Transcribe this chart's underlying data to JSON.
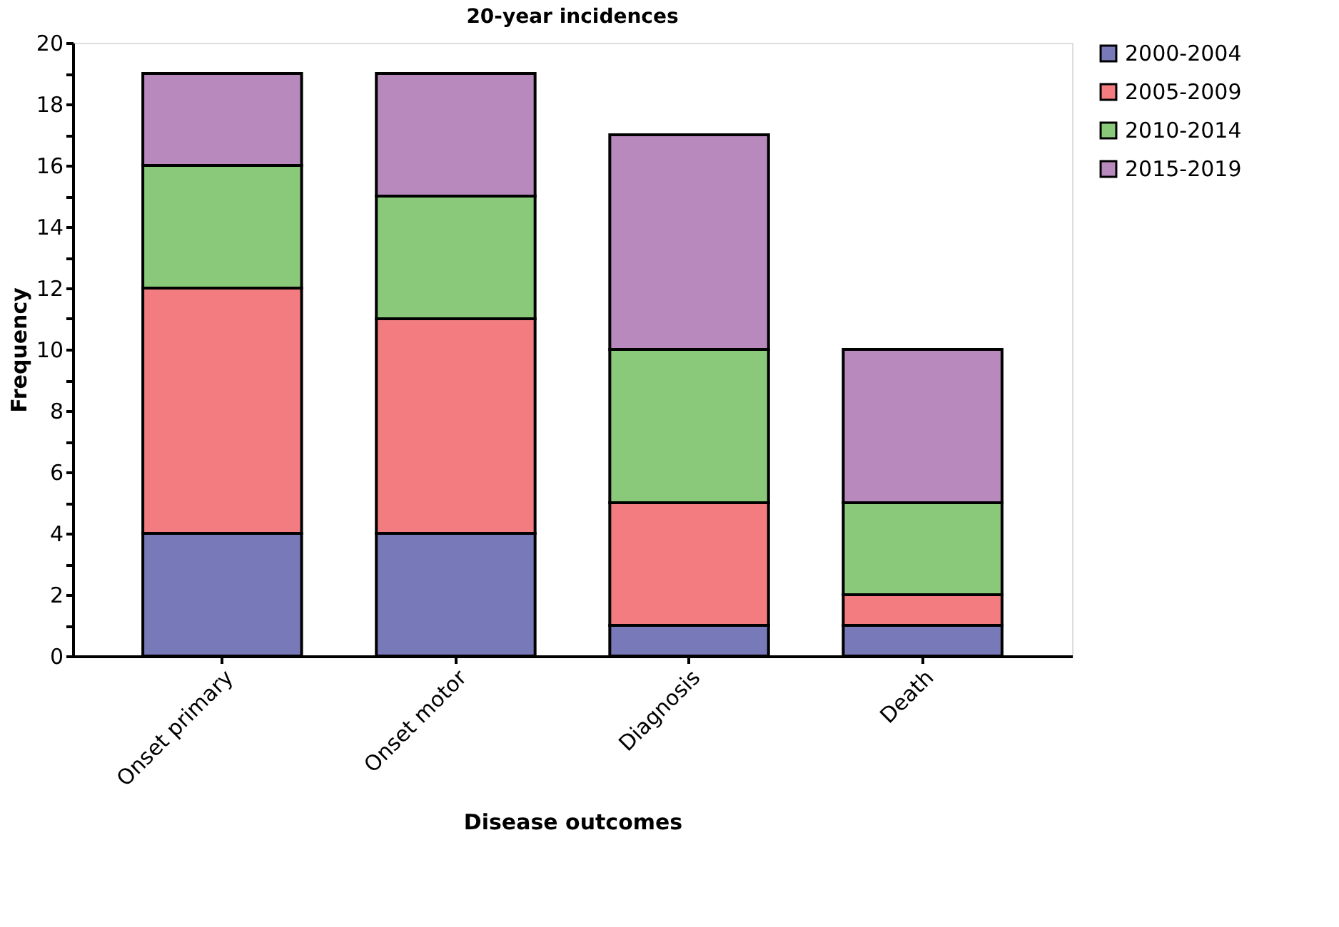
{
  "chart_data": {
    "type": "bar",
    "title": "20-year incidences",
    "xlabel": "Disease outcomes",
    "ylabel": "Frequency",
    "categories": [
      "Onset primary",
      "Onset motor",
      "Diagnosis",
      "Death"
    ],
    "stacked": true,
    "series": [
      {
        "name": "2000-2004",
        "color": "#7879b8",
        "values": [
          4,
          4,
          1,
          1
        ]
      },
      {
        "name": "2005-2009",
        "color": "#f27c7f",
        "values": [
          8,
          7,
          4,
          1
        ]
      },
      {
        "name": "2010-2014",
        "color": "#8ac97a",
        "values": [
          4,
          4,
          5,
          3
        ]
      },
      {
        "name": "2015-2019",
        "color": "#b889bc",
        "values": [
          3,
          4,
          7,
          5
        ]
      }
    ],
    "ylim": [
      0,
      20
    ],
    "yticks": [
      0,
      {
        "value": 1,
        "label": null
      },
      2,
      {
        "value": 3,
        "label": null
      },
      4,
      {
        "value": 5,
        "label": null
      },
      6,
      {
        "value": 7,
        "label": null
      },
      8,
      {
        "value": 9,
        "label": null
      },
      10,
      {
        "value": 11,
        "label": null
      },
      12,
      {
        "value": 13,
        "label": null
      },
      14,
      {
        "value": 15,
        "label": null
      },
      16,
      {
        "value": 17,
        "label": null
      },
      18,
      {
        "value": 19,
        "label": null
      },
      20
    ],
    "grid": false,
    "legend": "right"
  }
}
